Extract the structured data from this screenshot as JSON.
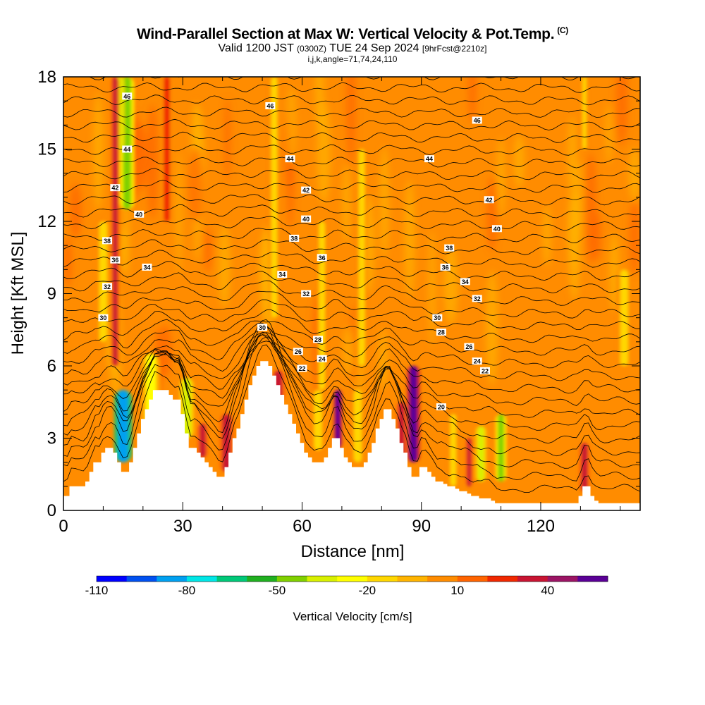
{
  "header": {
    "title": "Wind-Parallel Section at Max W: Vertical Velocity & Pot.Temp.",
    "copyright": "(C)",
    "valid_prefix": "Valid 1200 JST",
    "valid_utc": "(0300Z)",
    "valid_date": "TUE 24 Sep 2024",
    "forecast": "[9hrFcst@2210z]",
    "indices": "i,j,k,angle=71,74,24,110"
  },
  "chart_data": {
    "type": "heatmap",
    "title": "Wind-Parallel Section at Max W: Vertical Velocity & Pot.Temp.",
    "xlabel": "Distance [nm]",
    "ylabel": "Height [Kft MSL]",
    "xlim": [
      0,
      145
    ],
    "ylim": [
      0,
      18
    ],
    "x_ticks": [
      0,
      30,
      60,
      90,
      120
    ],
    "y_ticks": [
      0,
      3,
      6,
      9,
      12,
      15,
      18
    ],
    "colorbar": {
      "title": "Vertical Velocity [cm/s]",
      "tick_labels": [
        "-110",
        "-80",
        "-50",
        "-20",
        "10",
        "40"
      ],
      "tick_values": [
        -110,
        -80,
        -50,
        -20,
        10,
        40
      ],
      "range": [
        -110,
        60
      ],
      "step": 10,
      "colors": [
        "#0000ff",
        "#0050f0",
        "#00a0f0",
        "#00e6e6",
        "#00c878",
        "#20b020",
        "#80d000",
        "#d8f000",
        "#ffff00",
        "#ffd700",
        "#ffb400",
        "#ff8c00",
        "#ff6400",
        "#f02800",
        "#c81432",
        "#9b1464",
        "#5a0096"
      ]
    },
    "terrain_profile": {
      "x": [
        0,
        1,
        2,
        3,
        4,
        5,
        6,
        7,
        8,
        9,
        10,
        11,
        12,
        13,
        14,
        15,
        16,
        17,
        18,
        19,
        20,
        21,
        22,
        23,
        24,
        25,
        26,
        27,
        28,
        29,
        30,
        31,
        32,
        33,
        34,
        35,
        36,
        37,
        38,
        39,
        40,
        41,
        42,
        43,
        44,
        45,
        46,
        47,
        48,
        49,
        50,
        51,
        52,
        53,
        54,
        55,
        56,
        57,
        58,
        59,
        60,
        61,
        62,
        63,
        64,
        65,
        66,
        67,
        68,
        69,
        70,
        71,
        72,
        73,
        74,
        75,
        76,
        77,
        78,
        79,
        80,
        81,
        82,
        83,
        84,
        85,
        86,
        87,
        88,
        89,
        90,
        91,
        92,
        93,
        94,
        95,
        96,
        97,
        98,
        99,
        100,
        101,
        102,
        103,
        104,
        105,
        106,
        107,
        108,
        109,
        110,
        111,
        112,
        113,
        114,
        115,
        116,
        117,
        118,
        119,
        120,
        121,
        122,
        123,
        124,
        125,
        126,
        127,
        128,
        129,
        130,
        131,
        132,
        133,
        134,
        135,
        136,
        137,
        138,
        139,
        140,
        141,
        142,
        143,
        144,
        145
      ],
      "y": [
        0.6,
        0.6,
        1.0,
        1.0,
        1.0,
        1.0,
        1.2,
        1.6,
        2.0,
        2.0,
        2.4,
        2.6,
        2.6,
        2.4,
        2.0,
        1.6,
        1.6,
        2.0,
        2.6,
        3.2,
        3.8,
        4.2,
        4.6,
        5.0,
        5.0,
        5.0,
        5.0,
        4.8,
        4.6,
        4.6,
        4.0,
        3.2,
        2.6,
        2.6,
        2.4,
        2.2,
        2.0,
        1.8,
        1.6,
        1.4,
        1.4,
        1.8,
        2.4,
        3.0,
        3.4,
        4.0,
        4.6,
        5.2,
        5.6,
        6.0,
        6.2,
        6.2,
        6.0,
        5.6,
        5.2,
        4.8,
        4.4,
        4.0,
        3.6,
        3.2,
        2.8,
        2.4,
        2.2,
        2.0,
        2.0,
        2.0,
        2.2,
        2.6,
        3.0,
        3.0,
        2.6,
        2.2,
        2.0,
        1.8,
        1.8,
        1.8,
        2.0,
        2.4,
        2.8,
        3.4,
        3.8,
        4.2,
        4.2,
        3.8,
        3.4,
        2.8,
        2.4,
        1.8,
        1.4,
        1.4,
        1.8,
        1.8,
        1.6,
        1.4,
        1.2,
        1.2,
        1.1,
        1.0,
        1.0,
        0.9,
        0.8,
        0.8,
        0.7,
        0.6,
        0.6,
        0.5,
        0.5,
        0.5,
        0.4,
        0.3,
        0.3,
        0.3,
        0.3,
        0.3,
        0.3,
        0.3,
        0.3,
        0.3,
        0.3,
        0.3,
        0.3,
        0.3,
        0.3,
        0.3,
        0.3,
        0.3,
        0.3,
        0.3,
        0.3,
        0.3,
        0.6,
        1.0,
        1.0,
        0.6,
        0.4,
        0.3,
        0.3,
        0.3,
        0.3,
        0.3,
        0.3,
        0.3,
        0.3,
        0.3,
        0.3,
        0.3
      ]
    },
    "w_features": [
      {
        "x": 15,
        "y0": 2.0,
        "y1": 5.0,
        "width": 2.5,
        "value": -90
      },
      {
        "x": 16,
        "y0": 12.5,
        "y1": 18.0,
        "width": 2.0,
        "value": -50
      },
      {
        "x": 14,
        "y0": 15.0,
        "y1": 18.0,
        "width": 1.5,
        "value": -40
      },
      {
        "x": 22,
        "y0": 3.0,
        "y1": 6.5,
        "width": 2.5,
        "value": -30
      },
      {
        "x": 31,
        "y0": 3.0,
        "y1": 5.5,
        "width": 2.0,
        "value": -40
      },
      {
        "x": 26,
        "y0": 12.0,
        "y1": 18.0,
        "width": 1.5,
        "value": 25
      },
      {
        "x": 13,
        "y0": 6.0,
        "y1": 18.0,
        "width": 1.2,
        "value": 30
      },
      {
        "x": 10,
        "y0": 7.0,
        "y1": 12.0,
        "width": 2.0,
        "value": -15
      },
      {
        "x": 41,
        "y0": 1.6,
        "y1": 4.0,
        "width": 2.0,
        "value": 35
      },
      {
        "x": 35,
        "y0": 2.2,
        "y1": 3.6,
        "width": 1.5,
        "value": 30
      },
      {
        "x": 69,
        "y0": 2.6,
        "y1": 5.0,
        "width": 1.2,
        "value": 50
      },
      {
        "x": 88,
        "y0": 2.0,
        "y1": 6.0,
        "width": 1.8,
        "value": 55
      },
      {
        "x": 85,
        "y0": 2.0,
        "y1": 4.5,
        "width": 1.5,
        "value": 35
      },
      {
        "x": 54,
        "y0": 4.5,
        "y1": 5.8,
        "width": 2.0,
        "value": 30
      },
      {
        "x": 74,
        "y0": 2.0,
        "y1": 5.0,
        "width": 2.0,
        "value": -20
      },
      {
        "x": 64,
        "y0": 2.5,
        "y1": 5.0,
        "width": 2.0,
        "value": -20
      },
      {
        "x": 110,
        "y0": 1.2,
        "y1": 4.0,
        "width": 1.5,
        "value": -50
      },
      {
        "x": 105,
        "y0": 1.2,
        "y1": 3.5,
        "width": 1.5,
        "value": -40
      },
      {
        "x": 102,
        "y0": 1.0,
        "y1": 3.0,
        "width": 1.0,
        "value": 30
      },
      {
        "x": 98,
        "y0": 1.0,
        "y1": 4.0,
        "width": 1.5,
        "value": -20
      },
      {
        "x": 131,
        "y0": 0.8,
        "y1": 2.8,
        "width": 1.5,
        "value": 30
      },
      {
        "x": 53,
        "y0": 8.0,
        "y1": 18.0,
        "width": 1.5,
        "value": -20
      },
      {
        "x": 65,
        "y0": 5.0,
        "y1": 12.0,
        "width": 1.5,
        "value": -20
      },
      {
        "x": 75,
        "y0": 6.0,
        "y1": 15.0,
        "width": 1.5,
        "value": -15
      },
      {
        "x": 141,
        "y0": 6.0,
        "y1": 10.0,
        "width": 2.0,
        "value": -15
      },
      {
        "x": 131,
        "y0": 15.0,
        "y1": 18.0,
        "width": 1.0,
        "value": -20
      }
    ],
    "theta_labels": [
      {
        "x": 16,
        "y": 17.2,
        "text": "46"
      },
      {
        "x": 52,
        "y": 16.8,
        "text": "46"
      },
      {
        "x": 104,
        "y": 16.2,
        "text": "46"
      },
      {
        "x": 16,
        "y": 15.0,
        "text": "44"
      },
      {
        "x": 57,
        "y": 14.6,
        "text": "44"
      },
      {
        "x": 92,
        "y": 14.6,
        "text": "44"
      },
      {
        "x": 13,
        "y": 13.4,
        "text": "42"
      },
      {
        "x": 61,
        "y": 13.3,
        "text": "42"
      },
      {
        "x": 107,
        "y": 12.9,
        "text": "42"
      },
      {
        "x": 19,
        "y": 12.3,
        "text": "40"
      },
      {
        "x": 61,
        "y": 12.1,
        "text": "40"
      },
      {
        "x": 109,
        "y": 11.7,
        "text": "40"
      },
      {
        "x": 11,
        "y": 11.2,
        "text": "38"
      },
      {
        "x": 58,
        "y": 11.3,
        "text": "38"
      },
      {
        "x": 97,
        "y": 10.9,
        "text": "38"
      },
      {
        "x": 13,
        "y": 10.4,
        "text": "36"
      },
      {
        "x": 65,
        "y": 10.5,
        "text": "36"
      },
      {
        "x": 96,
        "y": 10.1,
        "text": "36"
      },
      {
        "x": 21,
        "y": 10.1,
        "text": "34"
      },
      {
        "x": 55,
        "y": 9.8,
        "text": "34"
      },
      {
        "x": 101,
        "y": 9.5,
        "text": "34"
      },
      {
        "x": 11,
        "y": 9.3,
        "text": "32"
      },
      {
        "x": 61,
        "y": 9.0,
        "text": "32"
      },
      {
        "x": 104,
        "y": 8.8,
        "text": "32"
      },
      {
        "x": 10,
        "y": 8.0,
        "text": "30"
      },
      {
        "x": 50,
        "y": 7.6,
        "text": "30"
      },
      {
        "x": 94,
        "y": 8.0,
        "text": "30"
      },
      {
        "x": 64,
        "y": 7.1,
        "text": "28"
      },
      {
        "x": 95,
        "y": 7.4,
        "text": "28"
      },
      {
        "x": 59,
        "y": 6.6,
        "text": "26"
      },
      {
        "x": 102,
        "y": 6.8,
        "text": "26"
      },
      {
        "x": 65,
        "y": 6.3,
        "text": "24"
      },
      {
        "x": 104,
        "y": 6.2,
        "text": "24"
      },
      {
        "x": 60,
        "y": 5.9,
        "text": "22"
      },
      {
        "x": 106,
        "y": 5.8,
        "text": "22"
      },
      {
        "x": 95,
        "y": 4.3,
        "text": "20"
      }
    ]
  }
}
